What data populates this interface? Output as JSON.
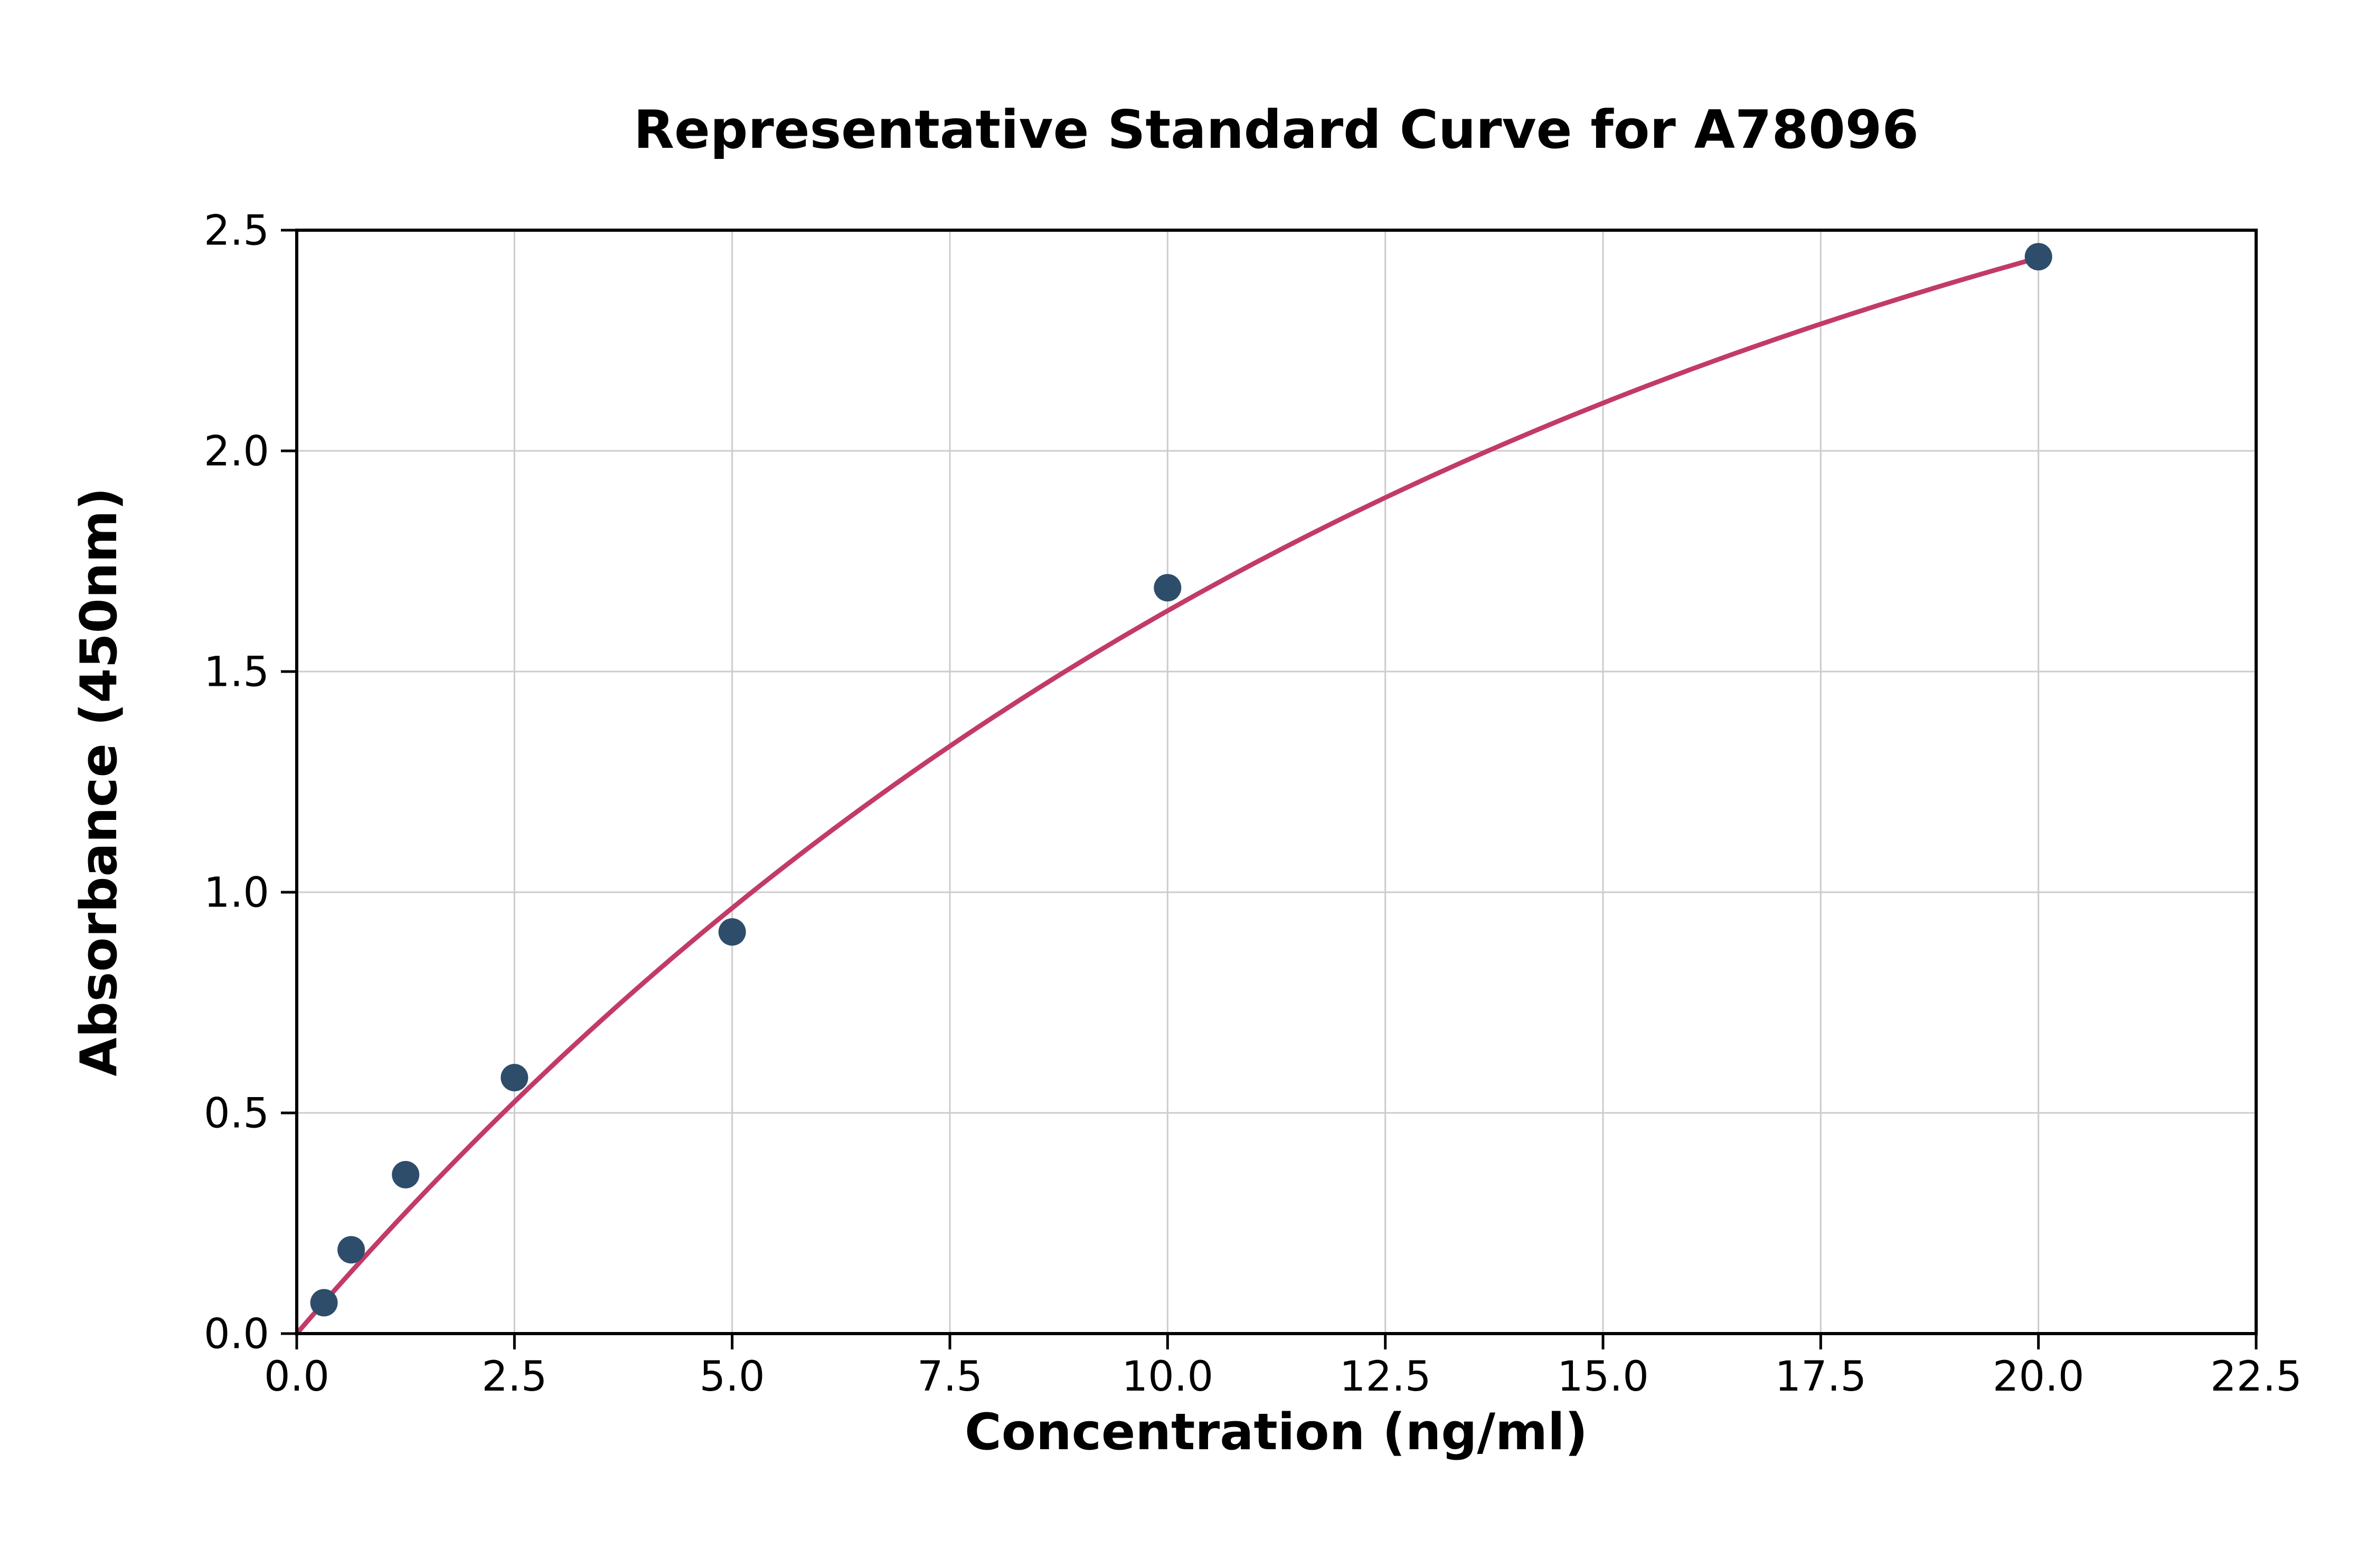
{
  "chart_data": {
    "type": "scatter",
    "title": "Representative Standard Curve for A78096",
    "xlabel": "Concentration (ng/ml)",
    "ylabel": "Absorbance (450nm)",
    "xlim": [
      0,
      22.5
    ],
    "ylim": [
      0,
      2.5
    ],
    "x_ticks": [
      0.0,
      2.5,
      5.0,
      7.5,
      10.0,
      12.5,
      15.0,
      17.5,
      20.0,
      22.5
    ],
    "x_tick_labels": [
      "0.0",
      "2.5",
      "5.0",
      "7.5",
      "10.0",
      "12.5",
      "15.0",
      "17.5",
      "20.0",
      "22.5"
    ],
    "y_ticks": [
      0.0,
      0.5,
      1.0,
      1.5,
      2.0,
      2.5
    ],
    "y_tick_labels": [
      "0.0",
      "0.5",
      "1.0",
      "1.5",
      "2.0",
      "2.5"
    ],
    "grid": true,
    "grid_color": "#cccccc",
    "background_color": "#ffffff",
    "points": {
      "x": [
        0.313,
        0.625,
        1.25,
        2.5,
        5.0,
        10.0,
        20.0
      ],
      "y": [
        0.07,
        0.19,
        0.36,
        0.58,
        0.91,
        1.69,
        2.44
      ],
      "color": "#2e4d6b",
      "marker": "circle"
    },
    "fit_curve": {
      "model": "y = a * (1 - exp(-b * x))",
      "a": 3.2,
      "b": 0.0717,
      "x_range": [
        0,
        20
      ],
      "color": "#c23b67"
    }
  }
}
